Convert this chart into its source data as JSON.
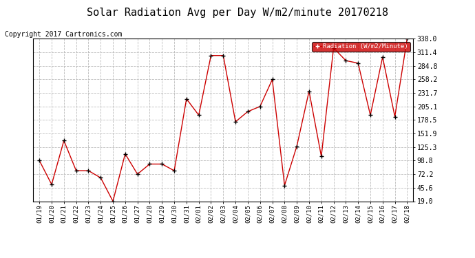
{
  "title": "Solar Radiation Avg per Day W/m2/minute 20170218",
  "copyright": "Copyright 2017 Cartronics.com",
  "legend_label": "Radiation (W/m2/Minute)",
  "dates": [
    "01/19",
    "01/20",
    "01/21",
    "01/22",
    "01/23",
    "01/24",
    "01/25",
    "01/26",
    "01/27",
    "01/28",
    "01/29",
    "01/30",
    "01/31",
    "02/01",
    "02/02",
    "02/03",
    "02/04",
    "02/05",
    "02/06",
    "02/07",
    "02/08",
    "02/09",
    "02/10",
    "02/11",
    "02/12",
    "02/13",
    "02/14",
    "02/15",
    "02/16",
    "02/17",
    "02/18"
  ],
  "values": [
    98.8,
    52.0,
    138.0,
    79.0,
    79.0,
    65.0,
    19.0,
    112.0,
    72.2,
    92.0,
    92.0,
    79.0,
    220.0,
    188.0,
    305.0,
    305.0,
    175.0,
    195.0,
    205.0,
    258.0,
    50.0,
    127.0,
    235.0,
    107.0,
    320.0,
    295.0,
    290.0,
    188.0,
    302.0,
    185.0,
    338.0
  ],
  "ylim": [
    19.0,
    338.0
  ],
  "yticks": [
    19.0,
    45.6,
    72.2,
    98.8,
    125.3,
    151.9,
    178.5,
    205.1,
    231.7,
    258.2,
    284.8,
    311.4,
    338.0
  ],
  "line_color": "#cc0000",
  "marker_color": "#000000",
  "bg_color": "#ffffff",
  "grid_color": "#bbbbbb",
  "title_fontsize": 11,
  "copyright_fontsize": 7,
  "legend_bg": "#cc0000",
  "legend_text_color": "#ffffff"
}
